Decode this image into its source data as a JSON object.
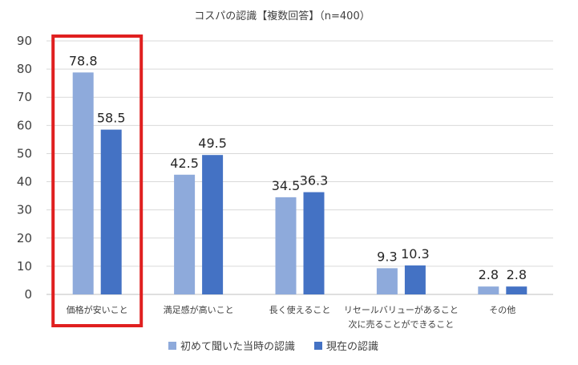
{
  "chart_data": {
    "type": "bar",
    "title": "コスパの認識【複数回答】（n=400）",
    "categories": [
      [
        "価格が安いこと"
      ],
      [
        "満足感が高いこと"
      ],
      [
        "長く使えること"
      ],
      [
        "リセールバリューがあること",
        "次に売ることができること"
      ],
      [
        "その他"
      ]
    ],
    "series": [
      {
        "name": "初めて聞いた当時の認識",
        "color": "#8eaadb",
        "values": [
          78.8,
          42.5,
          34.5,
          9.3,
          2.8
        ]
      },
      {
        "name": "現在の認識",
        "color": "#4472c4",
        "values": [
          58.5,
          49.5,
          36.3,
          10.3,
          2.8
        ]
      }
    ],
    "ylim": [
      0,
      90
    ],
    "yticks": [
      0,
      10,
      20,
      30,
      40,
      50,
      60,
      70,
      80,
      90
    ],
    "grid": true,
    "legend": "bottom",
    "highlight": {
      "category_index": 0,
      "color": "#e02020"
    },
    "xlabel": "",
    "ylabel": ""
  }
}
